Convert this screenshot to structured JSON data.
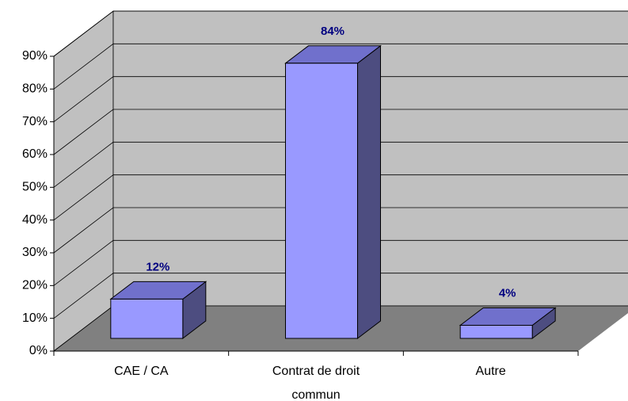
{
  "chart_data": {
    "type": "bar3d",
    "categories": [
      "CAE / CA",
      "Contrat de droit commun",
      "Autre"
    ],
    "values": [
      12,
      84,
      4
    ],
    "value_labels": [
      "12%",
      "84%",
      "4%"
    ],
    "color": "#9999ff",
    "ylim": [
      0,
      90
    ],
    "yticks": [
      {
        "value": 0,
        "label": "0%"
      },
      {
        "value": 10,
        "label": "10%"
      },
      {
        "value": 20,
        "label": "20%"
      },
      {
        "value": 30,
        "label": "30%"
      },
      {
        "value": 40,
        "label": "40%"
      },
      {
        "value": 50,
        "label": "50%"
      },
      {
        "value": 60,
        "label": "60%"
      },
      {
        "value": 70,
        "label": "70%"
      },
      {
        "value": 80,
        "label": "80%"
      },
      {
        "value": 90,
        "label": "90%"
      }
    ],
    "grid": true
  }
}
